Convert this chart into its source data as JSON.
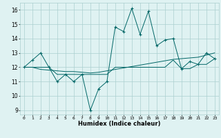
{
  "xlabel": "Humidex (Indice chaleur)",
  "x": [
    0,
    1,
    2,
    3,
    4,
    5,
    6,
    7,
    8,
    9,
    10,
    11,
    12,
    13,
    14,
    15,
    16,
    17,
    18,
    19,
    20,
    21,
    22,
    23
  ],
  "y_main": [
    12.0,
    12.5,
    13.0,
    12.0,
    11.0,
    11.5,
    11.0,
    11.5,
    9.0,
    10.5,
    11.0,
    14.8,
    14.5,
    16.1,
    14.3,
    15.9,
    13.5,
    13.9,
    14.0,
    11.9,
    12.4,
    12.2,
    13.0,
    12.6
  ],
  "y_smooth": [
    12.0,
    12.0,
    12.0,
    12.0,
    11.5,
    11.5,
    11.5,
    11.5,
    11.5,
    11.5,
    11.5,
    12.0,
    12.0,
    12.0,
    12.0,
    12.0,
    12.0,
    12.0,
    12.5,
    11.9,
    11.9,
    12.2,
    12.2,
    12.6
  ],
  "y_trend": [
    12.0,
    12.0,
    11.85,
    11.8,
    11.75,
    11.7,
    11.7,
    11.65,
    11.6,
    11.65,
    11.75,
    11.85,
    11.95,
    12.05,
    12.15,
    12.25,
    12.35,
    12.45,
    12.55,
    12.6,
    12.65,
    12.7,
    12.85,
    13.0
  ],
  "ylim_min": 8.7,
  "ylim_max": 16.5,
  "yticks": [
    9,
    10,
    11,
    12,
    13,
    14,
    15,
    16
  ],
  "xticks": [
    0,
    1,
    2,
    3,
    4,
    5,
    6,
    7,
    8,
    9,
    10,
    11,
    12,
    13,
    14,
    15,
    16,
    17,
    18,
    19,
    20,
    21,
    22,
    23
  ],
  "line_color": "#006666",
  "bg_color": "#dff2f2",
  "grid_color": "#aacfcf"
}
